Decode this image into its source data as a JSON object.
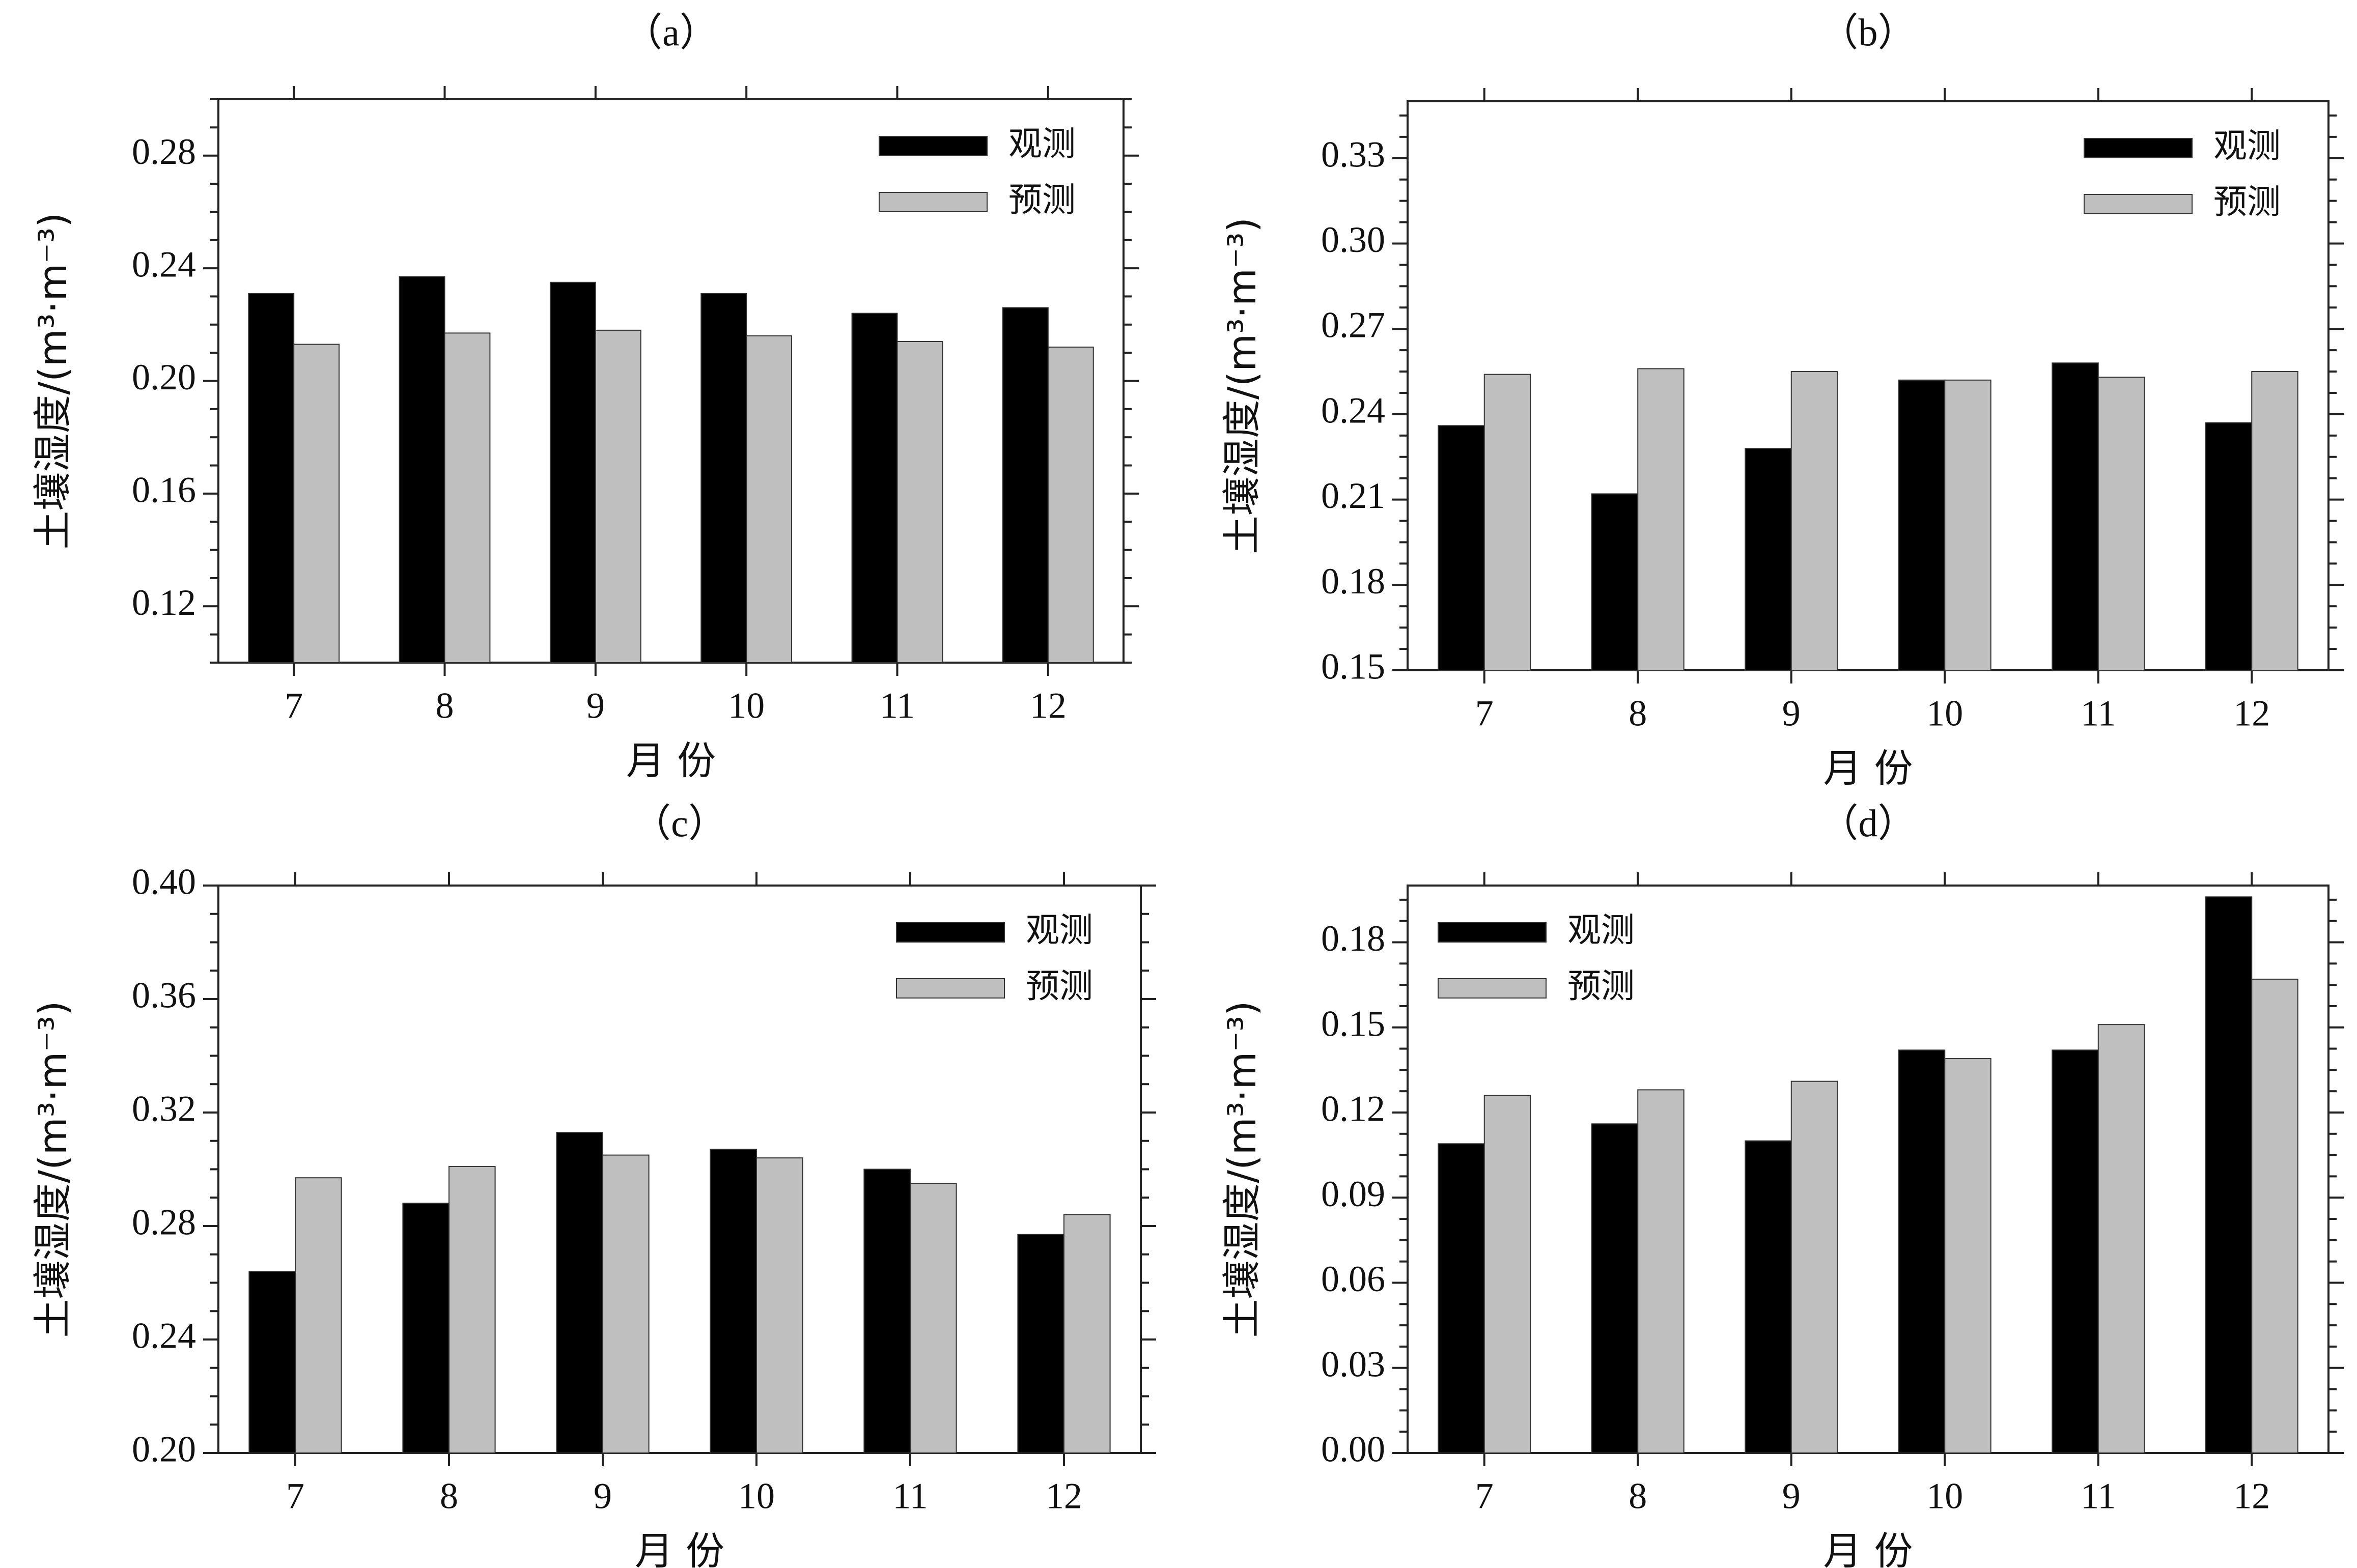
{
  "colors": {
    "observed": "#000000",
    "predicted": "#bfbfbf"
  },
  "chart_data": [
    {
      "type": "bar",
      "title": "（a）",
      "xlabel": "月 份",
      "ylabel": "土壤湿度/(m³·m⁻³)",
      "categories": [
        "7",
        "8",
        "9",
        "10",
        "11",
        "12"
      ],
      "ylim": [
        0.1,
        0.3
      ],
      "yticks": [
        "0.12",
        "0.16",
        "0.20",
        "0.24",
        "0.28"
      ],
      "yticks_values": [
        0.12,
        0.16,
        0.2,
        0.24,
        0.28
      ],
      "legend_position": "top-right",
      "series": [
        {
          "name": "观测",
          "values": [
            0.231,
            0.237,
            0.235,
            0.231,
            0.224,
            0.226
          ]
        },
        {
          "name": "预测",
          "values": [
            0.213,
            0.217,
            0.218,
            0.216,
            0.214,
            0.212
          ]
        }
      ]
    },
    {
      "type": "bar",
      "title": "（b）",
      "xlabel": "月 份",
      "ylabel": "土壤湿度/(m³·m⁻³)",
      "categories": [
        "7",
        "8",
        "9",
        "10",
        "11",
        "12"
      ],
      "ylim": [
        0.15,
        0.35
      ],
      "yticks": [
        "0.15",
        "0.18",
        "0.21",
        "0.24",
        "0.27",
        "0.30",
        "0.33"
      ],
      "yticks_values": [
        0.15,
        0.18,
        0.21,
        0.24,
        0.27,
        0.3,
        0.33
      ],
      "legend_position": "top-right",
      "series": [
        {
          "name": "观测",
          "values": [
            0.236,
            0.212,
            0.228,
            0.252,
            0.258,
            0.237
          ]
        },
        {
          "name": "预测",
          "values": [
            0.254,
            0.256,
            0.255,
            0.252,
            0.253,
            0.255
          ]
        }
      ]
    },
    {
      "type": "bar",
      "title": "（c）",
      "xlabel": "月 份",
      "ylabel": "土壤湿度/(m³·m⁻³)",
      "categories": [
        "7",
        "8",
        "9",
        "10",
        "11",
        "12"
      ],
      "ylim": [
        0.2,
        0.4
      ],
      "yticks": [
        "0.20",
        "0.24",
        "0.28",
        "0.32",
        "0.36",
        "0.40"
      ],
      "yticks_values": [
        0.2,
        0.24,
        0.28,
        0.32,
        0.36,
        0.4
      ],
      "legend_position": "top-right",
      "series": [
        {
          "name": "观测",
          "values": [
            0.264,
            0.288,
            0.313,
            0.307,
            0.3,
            0.277
          ]
        },
        {
          "name": "预测",
          "values": [
            0.297,
            0.301,
            0.305,
            0.304,
            0.295,
            0.284
          ]
        }
      ]
    },
    {
      "type": "bar",
      "title": "（d）",
      "xlabel": "月 份",
      "ylabel": "土壤湿度/(m³·m⁻³)",
      "categories": [
        "7",
        "8",
        "9",
        "10",
        "11",
        "12"
      ],
      "ylim": [
        0.0,
        0.2
      ],
      "yticks": [
        "0.00",
        "0.03",
        "0.06",
        "0.09",
        "0.12",
        "0.15",
        "0.18"
      ],
      "yticks_values": [
        0.0,
        0.03,
        0.06,
        0.09,
        0.12,
        0.15,
        0.18
      ],
      "legend_position": "top-left",
      "series": [
        {
          "name": "观测",
          "values": [
            0.109,
            0.116,
            0.11,
            0.142,
            0.142,
            0.196
          ]
        },
        {
          "name": "预测",
          "values": [
            0.126,
            0.128,
            0.131,
            0.139,
            0.151,
            0.167
          ]
        }
      ]
    }
  ]
}
